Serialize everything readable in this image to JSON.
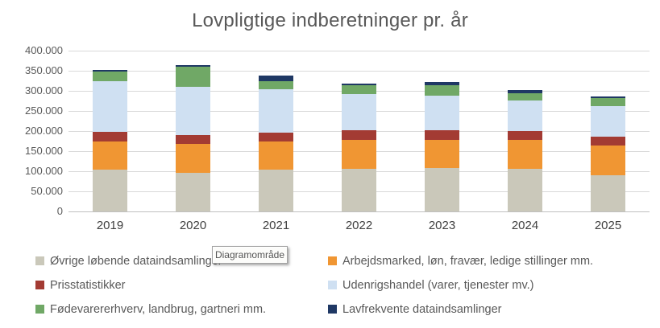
{
  "window": {
    "background": "#FFFFFF"
  },
  "chart": {
    "tooltip": "Diagramområde"
  },
  "chart_data": {
    "type": "bar",
    "stacked": true,
    "title": "Lovpligtige indberetninger pr. år",
    "xlabel": "",
    "ylabel": "",
    "categories": [
      "2019",
      "2020",
      "2021",
      "2022",
      "2023",
      "2024",
      "2025"
    ],
    "series": [
      {
        "name": "Øvrige løbende dataindsamlinger",
        "color": "#CAC8BA",
        "values": [
          105000,
          96000,
          104000,
          106000,
          108000,
          106000,
          90000
        ]
      },
      {
        "name": "Arbejdsmarked, løn, fravær, ledige stillinger mm.",
        "color": "#F09633",
        "values": [
          70000,
          72000,
          71000,
          73000,
          71000,
          73000,
          75000
        ]
      },
      {
        "name": "Prisstatistikker",
        "color": "#A33B33",
        "values": [
          24000,
          23000,
          21000,
          23000,
          23000,
          21000,
          22000
        ]
      },
      {
        "name": "Udenrigshandel (varer, tjenester mv.)",
        "color": "#CFE0F2",
        "values": [
          126000,
          120000,
          109000,
          90000,
          86000,
          76000,
          76000
        ]
      },
      {
        "name": "Fødevarererhverv, landbrug, gartneri mm.",
        "color": "#70A866",
        "values": [
          23000,
          49000,
          20000,
          23000,
          26000,
          19000,
          19000
        ]
      },
      {
        "name": "Lavfrekvente dataindsamlinger",
        "color": "#1F3864",
        "values": [
          5000,
          4000,
          13000,
          3000,
          8000,
          8000,
          5000
        ]
      }
    ],
    "y_axis": {
      "min": 0,
      "max": 400000,
      "step": 50000,
      "tick_labels": [
        "0",
        "50.000",
        "100.000",
        "150.000",
        "200.000",
        "250.000",
        "300.000",
        "350.000",
        "400.000"
      ]
    },
    "ylim": [
      0,
      400000
    ],
    "grid": true,
    "legend_position": "bottom"
  }
}
